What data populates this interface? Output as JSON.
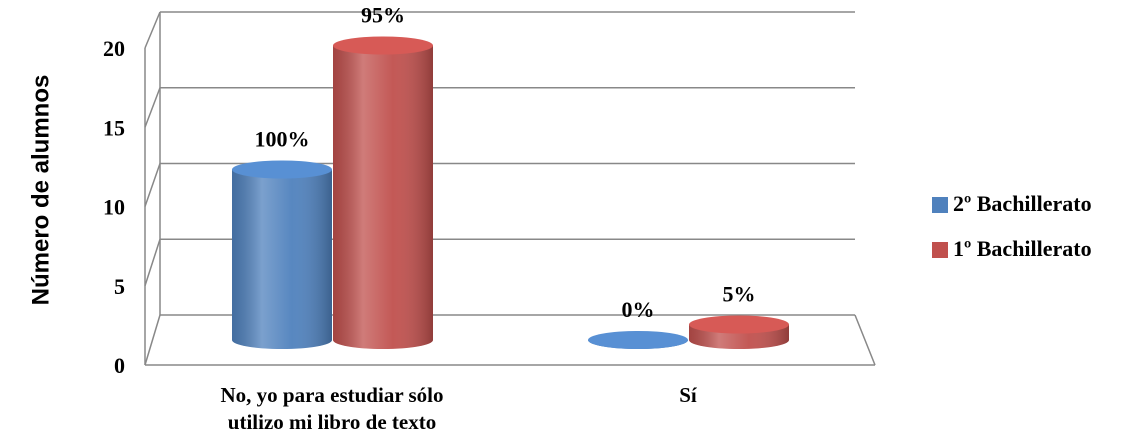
{
  "chart_data": {
    "type": "bar",
    "y_label": "Número de alumnos",
    "categories": [
      "No, yo para estudiar sólo utilizo mi libro de texto",
      "Sí"
    ],
    "series": [
      {
        "name": "2º Bachillerato",
        "color": "#4f81bd",
        "values": [
          11,
          0
        ],
        "value_labels": [
          "100%",
          "0%"
        ]
      },
      {
        "name": "1º Bachillerato",
        "color": "#c0504d",
        "values": [
          19,
          1
        ],
        "value_labels": [
          "95%",
          "5%"
        ]
      }
    ],
    "ylim": [
      0,
      20
    ],
    "yticks": [
      0,
      5,
      10,
      15,
      20
    ],
    "grid": true,
    "legend": "right"
  }
}
